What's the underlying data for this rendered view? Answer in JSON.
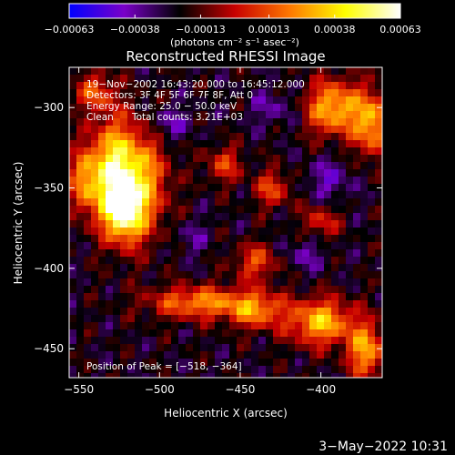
{
  "chart_data": {
    "type": "heatmap",
    "title": "Reconstructed RHESSI Image",
    "xlabel": "Heliocentric X (arcsec)",
    "ylabel": "Heliocentric Y (arcsec)",
    "xlim": [
      -556,
      -362
    ],
    "ylim": [
      -468,
      -275
    ],
    "x_ticks": [
      -550,
      -500,
      -450,
      -400
    ],
    "x_tick_labels": [
      "−550",
      "−500",
      "−450",
      "−400"
    ],
    "y_ticks": [
      -300,
      -350,
      -400,
      -450
    ],
    "y_tick_labels": [
      "−300",
      "−350",
      "−400",
      "−450"
    ],
    "colorbar": {
      "min": -0.00063,
      "max": 0.00063,
      "ticks": [
        -0.00063,
        -0.00038,
        -0.00013,
        0.00013,
        0.00038,
        0.00063
      ],
      "tick_labels": [
        "−0.00063",
        "−0.00038",
        "−0.00013",
        "0.00013",
        "0.00038",
        "0.00063"
      ],
      "unit_label": "(photons cm⁻² s⁻¹ asec⁻²)"
    },
    "annotations": {
      "time_range": "19−Nov−2002 16:43:20.000 to 16:45:12.000",
      "detectors": "Detectors: 3F 4F 5F 6F 7F 8F, Att 0",
      "energy_range": "Energy Range: 25.0 − 50.0 keV",
      "clean": "Clean",
      "total_counts": "Total counts: 3.21E+03",
      "peak_position": "Position of Peak = [−518, −364]"
    },
    "peak": {
      "x": -518,
      "y": -364
    },
    "sources": [
      {
        "x": -530,
        "y": -340,
        "amp": 0.0006,
        "sx": 10,
        "sy": 22
      },
      {
        "x": -522,
        "y": -364,
        "amp": 0.00058,
        "sx": 8,
        "sy": 12
      },
      {
        "x": -512,
        "y": -345,
        "amp": 0.0005,
        "sx": 12,
        "sy": 24
      },
      {
        "x": -547,
        "y": -345,
        "amp": 0.0004,
        "sx": 6,
        "sy": 14
      },
      {
        "x": -540,
        "y": -290,
        "amp": 0.00035,
        "sx": 8,
        "sy": 8
      },
      {
        "x": -475,
        "y": -420,
        "amp": 0.00045,
        "sx": 22,
        "sy": 7
      },
      {
        "x": -440,
        "y": -425,
        "amp": 0.0004,
        "sx": 12,
        "sy": 8
      },
      {
        "x": -400,
        "y": -432,
        "amp": 0.00055,
        "sx": 14,
        "sy": 10
      },
      {
        "x": -372,
        "y": -450,
        "amp": 0.0005,
        "sx": 8,
        "sy": 12
      },
      {
        "x": -392,
        "y": -300,
        "amp": 0.00055,
        "sx": 12,
        "sy": 12
      },
      {
        "x": -368,
        "y": -310,
        "amp": 0.0005,
        "sx": 8,
        "sy": 14
      },
      {
        "x": -460,
        "y": -335,
        "amp": 0.0003,
        "sx": 8,
        "sy": 8
      },
      {
        "x": -430,
        "y": -350,
        "amp": 0.00032,
        "sx": 8,
        "sy": 8
      },
      {
        "x": -440,
        "y": -395,
        "amp": 0.00032,
        "sx": 10,
        "sy": 8
      },
      {
        "x": -400,
        "y": -370,
        "amp": 0.00028,
        "sx": 8,
        "sy": 8
      },
      {
        "x": -495,
        "y": -310,
        "amp": -0.0002,
        "sx": 10,
        "sy": 8
      },
      {
        "x": -430,
        "y": -300,
        "amp": -0.00015,
        "sx": 10,
        "sy": 8
      },
      {
        "x": -395,
        "y": -345,
        "amp": -0.00018,
        "sx": 10,
        "sy": 10
      },
      {
        "x": -410,
        "y": -390,
        "amp": -0.00015,
        "sx": 10,
        "sy": 8
      },
      {
        "x": -480,
        "y": -380,
        "amp": -0.00012,
        "sx": 8,
        "sy": 8
      }
    ]
  },
  "footer": {
    "timestamp": "3−May−2022 10:31"
  },
  "colors": {
    "background": "#000000",
    "text": "#ffffff",
    "colormap": [
      "#0000ff",
      "#7a00c8",
      "#000000",
      "#c80000",
      "#ff7800",
      "#ffff00",
      "#ffffff"
    ]
  }
}
